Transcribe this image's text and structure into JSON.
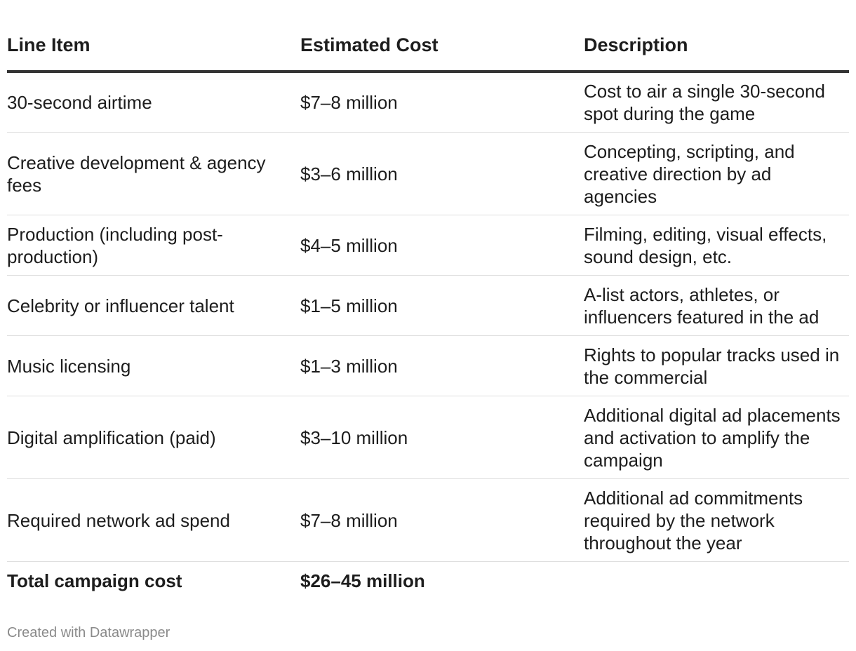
{
  "chart_data": {
    "type": "table",
    "columns": [
      "Line Item",
      "Estimated Cost",
      "Description"
    ],
    "rows": [
      {
        "item": "30-second airtime",
        "cost": "$7–8 million",
        "description": "Cost to air a single 30-second spot during the game"
      },
      {
        "item": "Creative development & agency fees",
        "cost": "$3–6 million",
        "description": "Concepting, scripting, and creative direction by ad agencies"
      },
      {
        "item": "Production (including post-production)",
        "cost": "$4–5 million",
        "description": "Filming, editing, visual effects, sound design, etc."
      },
      {
        "item": "Celebrity or influencer talent",
        "cost": "$1–5 million",
        "description": "A-list actors, athletes, or influencers featured in the ad"
      },
      {
        "item": "Music licensing",
        "cost": "$1–3 million",
        "description": "Rights to popular tracks used in the commercial"
      },
      {
        "item": "Digital amplification (paid)",
        "cost": "$3–10 million",
        "description": "Additional digital ad placements and activation to amplify the campaign"
      },
      {
        "item": "Required network ad spend",
        "cost": "$7–8 million",
        "description": "Additional ad commitments required by the network throughout the year"
      }
    ],
    "total": {
      "item": "Total campaign cost",
      "cost": "$26–45 million",
      "description": ""
    }
  },
  "footer": {
    "credit": "Created with Datawrapper"
  }
}
